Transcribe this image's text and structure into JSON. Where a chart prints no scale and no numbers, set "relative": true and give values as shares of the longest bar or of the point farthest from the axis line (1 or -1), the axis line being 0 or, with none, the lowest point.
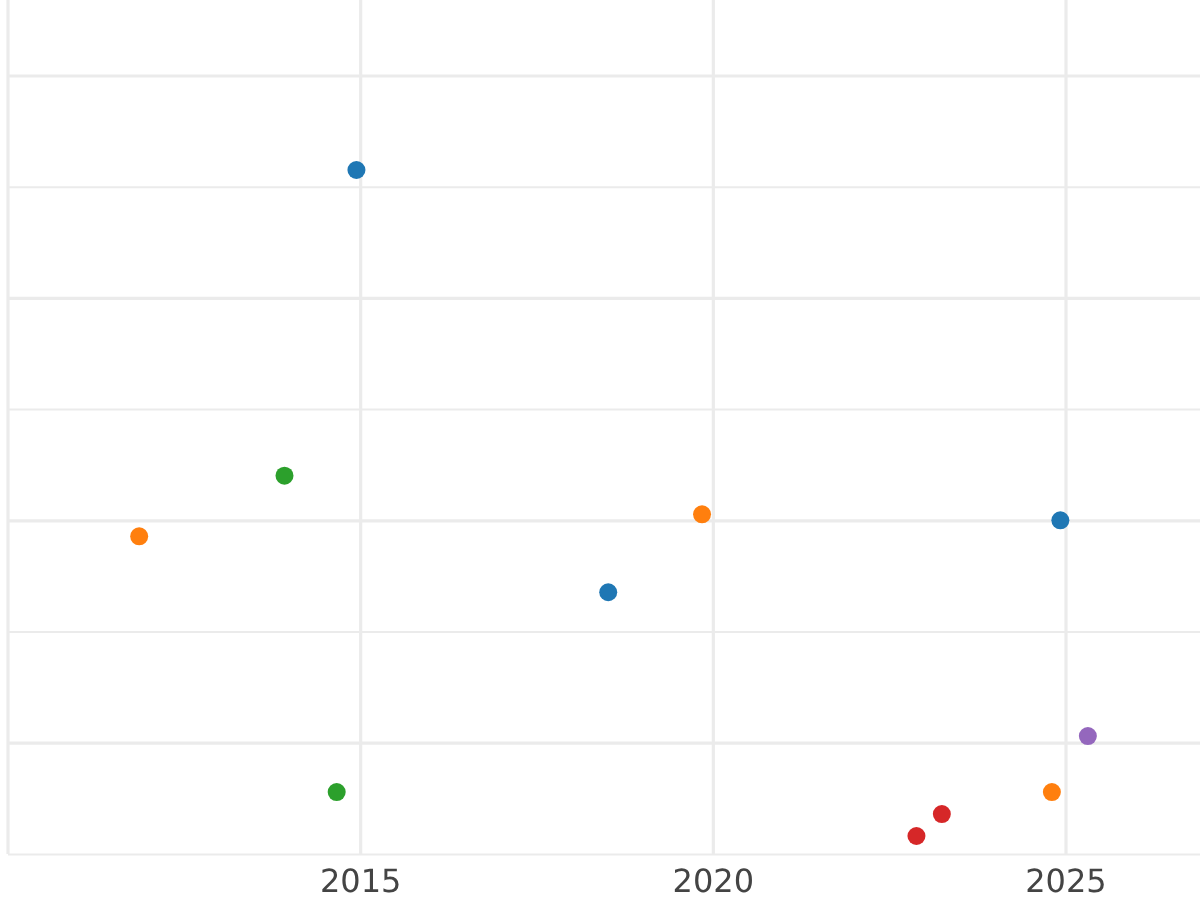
{
  "chart_data": {
    "type": "scatter",
    "relative": true,
    "xlim": [
      2010,
      2026.9
    ],
    "xticks": [
      {
        "value": 2010,
        "label": null
      },
      2015,
      2020,
      2025
    ],
    "grid": true,
    "marker": "circle",
    "tick_labels": "x",
    "series": [
      {
        "color": "#1f77b4",
        "x": [
          2014.94,
          2018.51,
          2024.92
        ],
        "values": [
          1,
          0.366,
          0.474
        ]
      },
      {
        "color": "#ff7f0e",
        "x": [
          2011.86,
          2019.84,
          2024.8
        ],
        "values": [
          0.45,
          0.483,
          0.066
        ]
      },
      {
        "color": "#2ca02c",
        "x": [
          2013.92,
          2014.66
        ],
        "values": [
          0.541,
          0.066
        ]
      },
      {
        "color": "#d62728",
        "x": [
          2022.88,
          2023.24
        ],
        "values": [
          0,
          0.033
        ]
      },
      {
        "color": "#9467bd",
        "x": [
          2025.31
        ],
        "values": [
          0.15
        ]
      }
    ]
  }
}
